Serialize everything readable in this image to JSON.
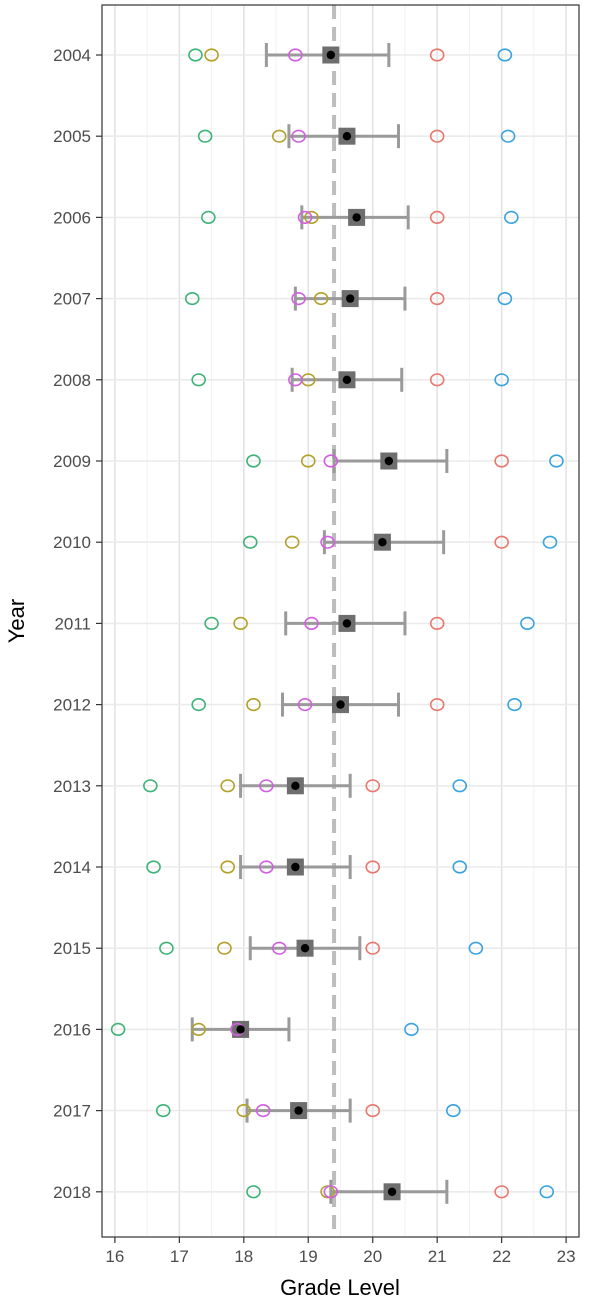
{
  "chart_data": {
    "type": "scatter",
    "title": "",
    "xlabel": "Grade Level",
    "ylabel": "Year",
    "xlim": [
      15.8,
      23.2
    ],
    "xticks": [
      16,
      17,
      18,
      19,
      20,
      21,
      22,
      23
    ],
    "grid": "vertical",
    "legend": "none",
    "reference_line": {
      "x": 19.4,
      "style": "dashed",
      "color": "#bdbdbd"
    },
    "colors": {
      "red": "#E8776E",
      "olive": "#B3A02A",
      "green": "#3DB377",
      "blue": "#3AA2E0",
      "magenta": "#D15FE0",
      "mean": "#000000",
      "box": "#6e6e6e",
      "errorbar": "#9a9a9a"
    },
    "years": [
      "2004",
      "2005",
      "2006",
      "2007",
      "2008",
      "2009",
      "2010",
      "2011",
      "2012",
      "2013",
      "2014",
      "2015",
      "2016",
      "2017",
      "2018"
    ],
    "series": [
      {
        "color": "red",
        "values": [
          21.0,
          21.0,
          21.0,
          21.0,
          21.0,
          22.0,
          22.0,
          21.0,
          21.0,
          20.0,
          20.0,
          20.0,
          null,
          20.0,
          22.0
        ]
      },
      {
        "color": "olive",
        "values": [
          17.5,
          18.55,
          19.05,
          19.2,
          19.0,
          19.0,
          18.75,
          17.95,
          18.15,
          17.75,
          17.75,
          17.7,
          17.3,
          18.0,
          19.3
        ]
      },
      {
        "color": "green",
        "values": [
          17.25,
          17.4,
          17.45,
          17.2,
          17.3,
          18.15,
          18.1,
          17.5,
          17.3,
          16.55,
          16.6,
          16.8,
          16.05,
          16.75,
          18.15
        ]
      },
      {
        "color": "blue",
        "values": [
          22.05,
          22.1,
          22.15,
          22.05,
          22.0,
          22.85,
          22.75,
          22.4,
          22.2,
          21.35,
          21.35,
          21.6,
          20.6,
          21.25,
          22.7
        ]
      },
      {
        "color": "magenta",
        "values": [
          18.8,
          18.85,
          18.95,
          18.85,
          18.8,
          19.35,
          19.3,
          19.05,
          18.95,
          18.35,
          18.35,
          18.55,
          17.9,
          18.3,
          19.35
        ]
      }
    ],
    "mean": [
      19.35,
      19.6,
      19.75,
      19.65,
      19.6,
      20.25,
      20.15,
      19.6,
      19.5,
      18.8,
      18.8,
      18.95,
      17.95,
      18.85,
      20.3
    ],
    "lower": [
      18.35,
      18.7,
      18.9,
      18.8,
      18.75,
      19.4,
      19.25,
      18.65,
      18.6,
      17.95,
      17.95,
      18.1,
      17.2,
      18.05,
      19.35
    ],
    "upper": [
      20.25,
      20.4,
      20.55,
      20.5,
      20.45,
      21.15,
      21.1,
      20.5,
      20.4,
      19.65,
      19.65,
      19.8,
      18.7,
      19.65,
      21.15
    ]
  }
}
